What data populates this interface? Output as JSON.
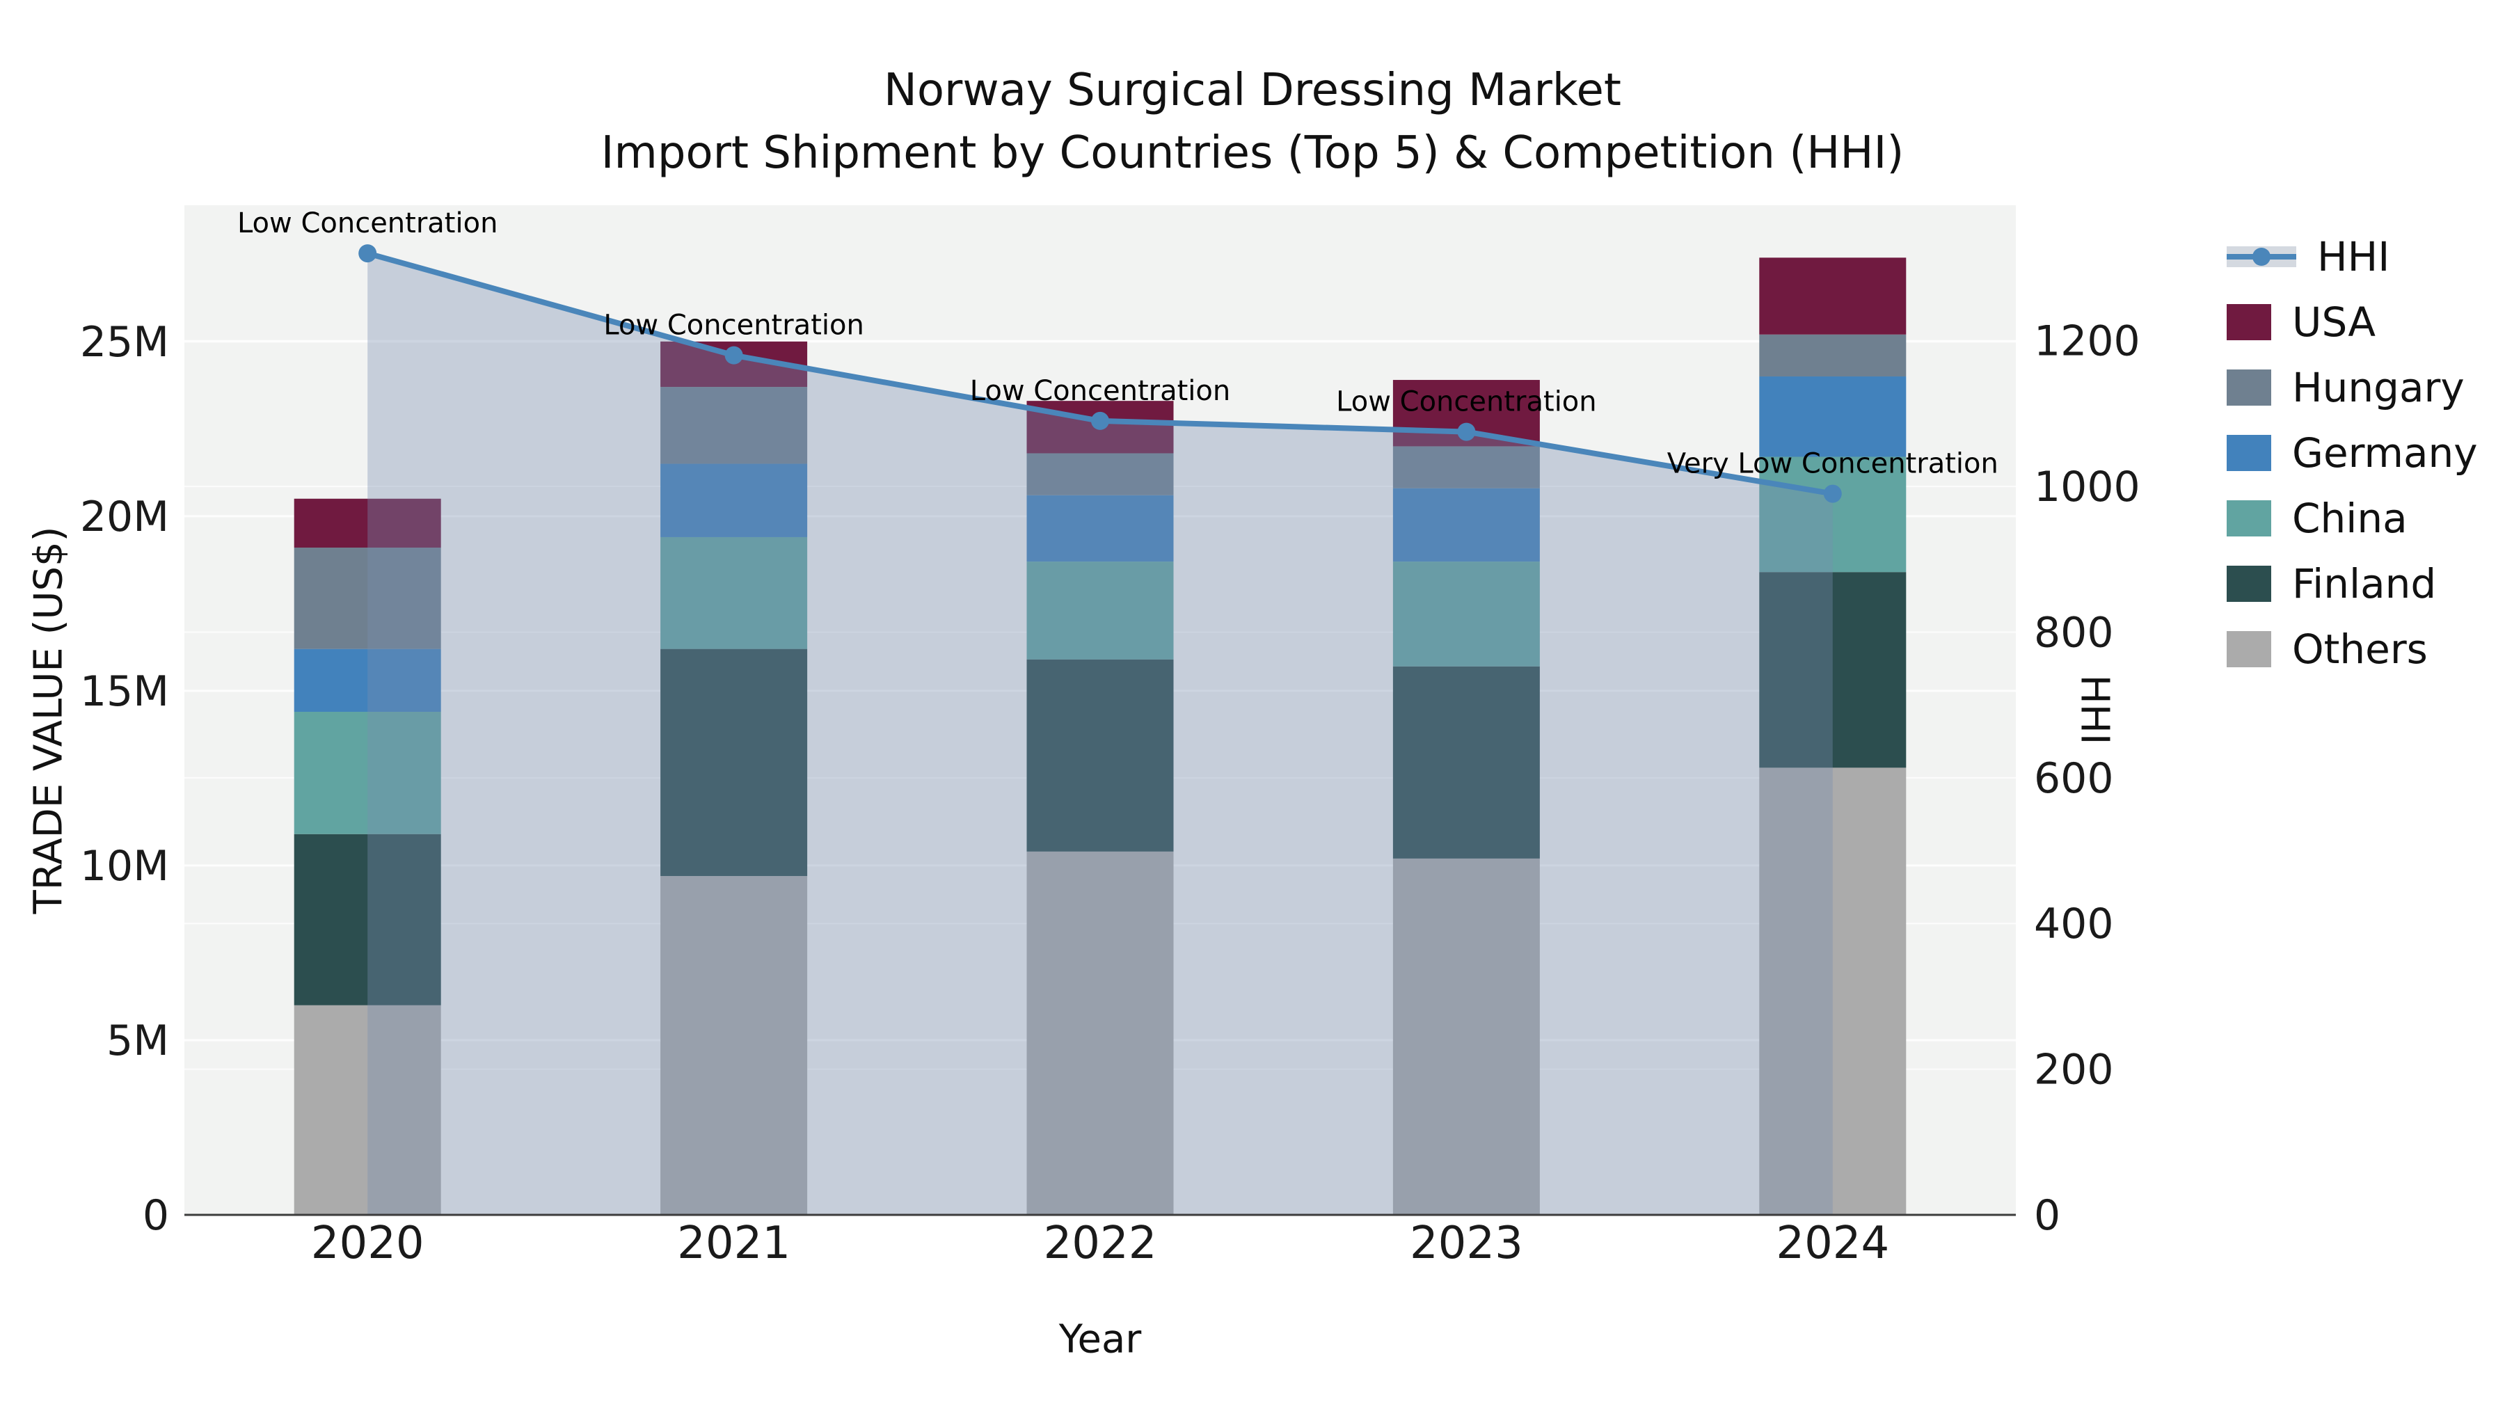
{
  "title": {
    "line1": "Norway Surgical Dressing Market",
    "line2": "Import Shipment by Countries (Top 5) & Competition (HHI)"
  },
  "axes": {
    "y_left": {
      "title": "TRADE VALUE (US$)",
      "tick_labels": [
        "0",
        "5M",
        "10M",
        "15M",
        "20M",
        "25M"
      ],
      "tick_values": [
        0,
        5,
        10,
        15,
        20,
        25
      ]
    },
    "y_right": {
      "title": "HHI",
      "tick_labels": [
        "0",
        "200",
        "400",
        "600",
        "800",
        "1000",
        "1200"
      ],
      "tick_values": [
        0,
        200,
        400,
        600,
        800,
        1000,
        1200
      ]
    },
    "x": {
      "title": "Year"
    }
  },
  "legend": {
    "items": [
      {
        "label": "HHI",
        "color": "#4a86ba",
        "type": "line"
      },
      {
        "label": "USA",
        "color": "#701a40",
        "type": "swatch"
      },
      {
        "label": "Hungary",
        "color": "#6f8090",
        "type": "swatch"
      },
      {
        "label": "Germany",
        "color": "#4282bc",
        "type": "swatch"
      },
      {
        "label": "China",
        "color": "#61a4a1",
        "type": "swatch"
      },
      {
        "label": "Finland",
        "color": "#2c4e4f",
        "type": "swatch"
      },
      {
        "label": "Others",
        "color": "#ababab",
        "type": "swatch"
      }
    ]
  },
  "chart_data": {
    "type": "bar",
    "subtype": "stacked-bar-with-line",
    "title": "Norway Surgical Dressing Market — Import Shipment by Countries (Top 5) & Competition (HHI)",
    "xlabel": "Year",
    "ylabel": "TRADE VALUE (US$)",
    "ylabel_right": "HHI",
    "units_left": "million US$",
    "categories": [
      "2020",
      "2021",
      "2022",
      "2023",
      "2024"
    ],
    "stack_series": [
      {
        "name": "Others",
        "color": "#ababab",
        "values": [
          6.0,
          9.7,
          10.4,
          10.2,
          12.8
        ]
      },
      {
        "name": "Finland",
        "color": "#2c4e4f",
        "values": [
          4.9,
          6.5,
          5.5,
          5.5,
          5.6
        ]
      },
      {
        "name": "China",
        "color": "#61a4a1",
        "values": [
          3.5,
          3.2,
          2.8,
          3.0,
          3.3
        ]
      },
      {
        "name": "Germany",
        "color": "#4282bc",
        "values": [
          1.8,
          2.1,
          1.9,
          2.1,
          2.3
        ]
      },
      {
        "name": "Hungary",
        "color": "#6f8090",
        "values": [
          2.9,
          2.2,
          1.2,
          1.2,
          1.2
        ]
      },
      {
        "name": "USA",
        "color": "#701a40",
        "values": [
          1.4,
          1.3,
          1.5,
          1.9,
          2.2
        ]
      }
    ],
    "totals": [
      20.5,
      25.0,
      23.3,
      23.9,
      27.4
    ],
    "line_series": {
      "name": "HHI",
      "axis": "right",
      "color": "#4a86ba",
      "fill_color": "rgba(120,140,175,0.36)",
      "values": [
        1320,
        1180,
        1090,
        1075,
        990
      ]
    },
    "annotations": [
      "Low Concentration",
      "Low Concentration",
      "Low Concentration",
      "Low Concentration",
      "Very Low Concentration"
    ],
    "ylim_left": [
      0,
      28.9
    ],
    "ylim_right": [
      0,
      1386
    ],
    "grid": true,
    "legend_position": "right"
  },
  "colors": {
    "figure_bg": "#ffffff",
    "plot_bg": "#f2f3f2",
    "grid": "#ffffff",
    "axis_line": "#3c3c3c",
    "text": "#1a1a1a"
  }
}
